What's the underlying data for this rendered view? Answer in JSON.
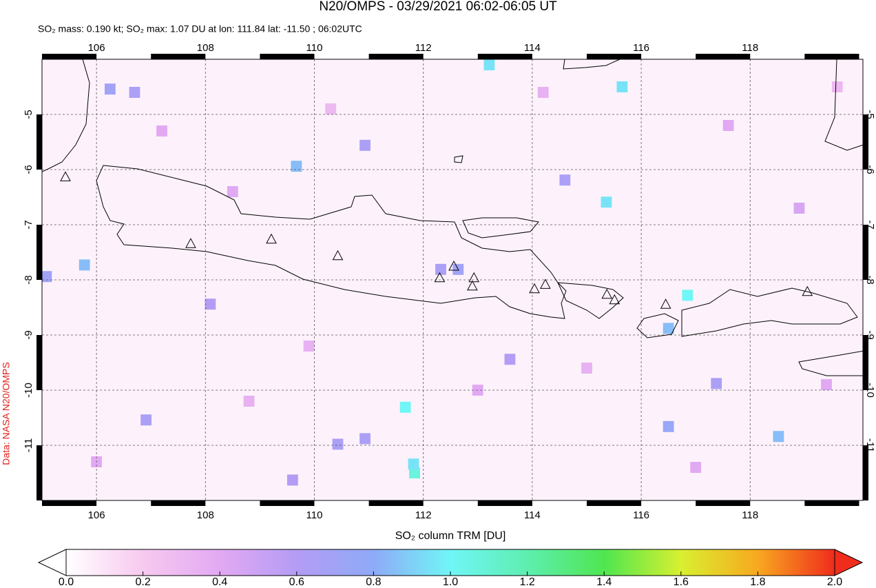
{
  "title": "N20/OMPS - 03/29/2021 06:02-06:05 UT",
  "subtitle": "SO₂ mass: 0.190 kt; SO₂ max: 1.07 DU at lon: 111.84 lat: -11.50 ; 06:02UTC",
  "credit": "Data: NASA N20/OMPS",
  "map": {
    "xlim": [
      105,
      120.07
    ],
    "ylim": [
      -12,
      -4
    ],
    "xticks": [
      106,
      108,
      110,
      112,
      114,
      116,
      118
    ],
    "yticks": [
      -5,
      -6,
      -7,
      -8,
      -9,
      -10,
      -11
    ],
    "grid": true,
    "pixels": [
      {
        "lon": 113.21,
        "lat": -4.1,
        "value": 0.95
      },
      {
        "lon": 115.65,
        "lat": -4.5,
        "value": 0.95
      },
      {
        "lon": 115.36,
        "lat": -6.59,
        "value": 0.95
      },
      {
        "lon": 105.78,
        "lat": -7.73,
        "value": 0.85
      },
      {
        "lon": 109.67,
        "lat": -5.94,
        "value": 0.85
      },
      {
        "lon": 116.85,
        "lat": -8.28,
        "value": 1.0
      },
      {
        "lon": 116.5,
        "lat": -8.88,
        "value": 0.85
      },
      {
        "lon": 111.67,
        "lat": -10.31,
        "value": 1.0
      },
      {
        "lon": 111.84,
        "lat": -11.5,
        "value": 1.07
      },
      {
        "lon": 111.82,
        "lat": -11.34,
        "value": 0.95
      },
      {
        "lon": 118.52,
        "lat": -10.84,
        "value": 0.85
      },
      {
        "lon": 116.5,
        "lat": -10.66,
        "value": 0.75
      },
      {
        "lon": 105.08,
        "lat": -7.94,
        "value": 0.7
      },
      {
        "lon": 106.25,
        "lat": -4.54,
        "value": 0.7
      },
      {
        "lon": 106.7,
        "lat": -4.6,
        "value": 0.65
      },
      {
        "lon": 110.93,
        "lat": -5.56,
        "value": 0.65
      },
      {
        "lon": 110.93,
        "lat": -10.88,
        "value": 0.65
      },
      {
        "lon": 110.43,
        "lat": -10.98,
        "value": 0.65
      },
      {
        "lon": 106.91,
        "lat": -10.54,
        "value": 0.65
      },
      {
        "lon": 114.6,
        "lat": -6.19,
        "value": 0.65
      },
      {
        "lon": 117.38,
        "lat": -9.88,
        "value": 0.65
      },
      {
        "lon": 112.64,
        "lat": -7.81,
        "value": 0.7
      },
      {
        "lon": 112.32,
        "lat": -7.81,
        "value": 0.65
      },
      {
        "lon": 113.59,
        "lat": -9.44,
        "value": 0.6
      },
      {
        "lon": 108.09,
        "lat": -8.44,
        "value": 0.6
      },
      {
        "lon": 109.6,
        "lat": -11.63,
        "value": 0.6
      },
      {
        "lon": 107.2,
        "lat": -5.3,
        "value": 0.4
      },
      {
        "lon": 108.5,
        "lat": -6.4,
        "value": 0.4
      },
      {
        "lon": 109.9,
        "lat": -9.2,
        "value": 0.35
      },
      {
        "lon": 113.0,
        "lat": -10.0,
        "value": 0.4
      },
      {
        "lon": 115.0,
        "lat": -9.6,
        "value": 0.35
      },
      {
        "lon": 117.6,
        "lat": -5.2,
        "value": 0.4
      },
      {
        "lon": 118.9,
        "lat": -6.7,
        "value": 0.45
      },
      {
        "lon": 119.4,
        "lat": -9.9,
        "value": 0.4
      },
      {
        "lon": 114.2,
        "lat": -4.6,
        "value": 0.35
      },
      {
        "lon": 106.0,
        "lat": -11.3,
        "value": 0.4
      },
      {
        "lon": 108.8,
        "lat": -10.2,
        "value": 0.35
      },
      {
        "lon": 117.0,
        "lat": -11.4,
        "value": 0.4
      },
      {
        "lon": 119.6,
        "lat": -4.5,
        "value": 0.3
      },
      {
        "lon": 110.3,
        "lat": -4.9,
        "value": 0.3
      }
    ],
    "volcanoes": [
      {
        "lon": 107.73,
        "lat": -7.34
      },
      {
        "lon": 109.21,
        "lat": -7.26
      },
      {
        "lon": 110.43,
        "lat": -7.56
      },
      {
        "lon": 112.3,
        "lat": -7.96
      },
      {
        "lon": 112.56,
        "lat": -7.75
      },
      {
        "lon": 112.93,
        "lat": -7.96
      },
      {
        "lon": 112.9,
        "lat": -8.11
      },
      {
        "lon": 114.04,
        "lat": -8.16
      },
      {
        "lon": 114.24,
        "lat": -8.08
      },
      {
        "lon": 115.37,
        "lat": -8.26
      },
      {
        "lon": 115.51,
        "lat": -8.36
      },
      {
        "lon": 116.45,
        "lat": -8.44
      },
      {
        "lon": 119.05,
        "lat": -8.21
      },
      {
        "lon": 105.43,
        "lat": -6.13
      }
    ]
  },
  "colorbar": {
    "label": "SO₂ column TRM [DU]",
    "range": [
      0,
      2
    ],
    "colors": [
      "#ffffff",
      "#f7c9ef",
      "#e2a9f3",
      "#b49cf4",
      "#8eaaf8",
      "#70f6f6",
      "#5eeeb0",
      "#4fe650",
      "#d8f030",
      "#f8a820",
      "#f02c1c"
    ],
    "ticks": [
      {
        "value": 0,
        "label": "0.0"
      },
      {
        "value": 0.2,
        "label": "0.2"
      },
      {
        "value": 0.4,
        "label": "0.4"
      },
      {
        "value": 0.6,
        "label": "0.6"
      },
      {
        "value": 0.8,
        "label": "0.8"
      },
      {
        "value": 1,
        "label": "1.0"
      },
      {
        "value": 1.2,
        "label": "1.2"
      },
      {
        "value": 1.4,
        "label": "1.4"
      },
      {
        "value": 1.6,
        "label": "1.6"
      },
      {
        "value": 1.8,
        "label": "1.8"
      },
      {
        "value": 2,
        "label": "2.0"
      }
    ]
  }
}
